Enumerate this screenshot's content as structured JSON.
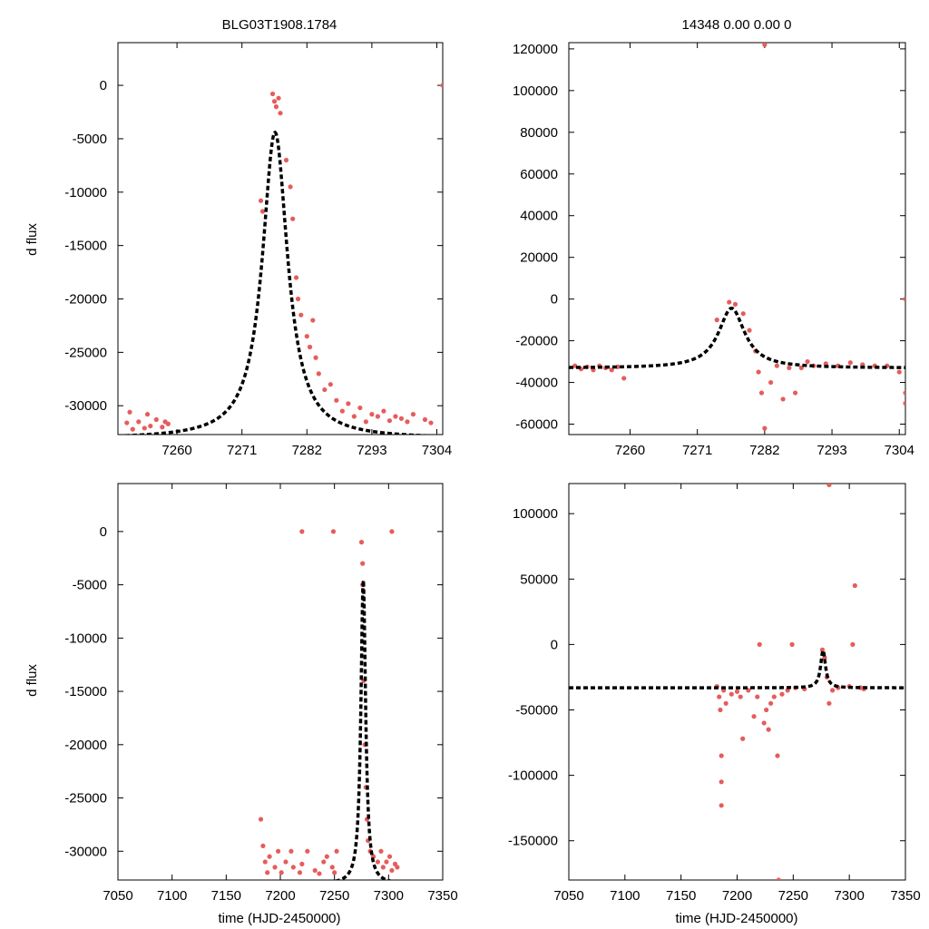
{
  "figure": {
    "title_left": "BLG03T1908.1784",
    "title_right": "14348  0.00  0.00  0",
    "ylabel": "d flux",
    "xlabel": "time (HJD-2450000)"
  },
  "colors": {
    "points": "#e65c5c",
    "model": "#000000",
    "axes": "#000000"
  },
  "chart_data": [
    {
      "type": "scatter",
      "panel": "top-left",
      "xlim": [
        7250,
        7305
      ],
      "ylim": [
        -32700,
        4000
      ],
      "xticks": [
        7260,
        7271,
        7282,
        7293,
        7304
      ],
      "yticks": [
        0,
        -5000,
        -10000,
        -15000,
        -20000,
        -25000,
        -30000
      ],
      "model": {
        "t0": 7276.6,
        "peak": -4400,
        "base": -33100,
        "width": 2.6
      },
      "series": [
        {
          "name": "data",
          "points": [
            [
              7251.5,
              -31600
            ],
            [
              7252.5,
              -32200
            ],
            [
              7253.5,
              -31500
            ],
            [
              7254.5,
              -32100
            ],
            [
              7255.5,
              -31900
            ],
            [
              7256.5,
              -31300
            ],
            [
              7257.5,
              -32000
            ],
            [
              7258.5,
              -31700
            ],
            [
              7252,
              -30600
            ],
            [
              7255,
              -30800
            ],
            [
              7258,
              -31500
            ],
            [
              7274.2,
              -10800
            ],
            [
              7274.5,
              -11800
            ],
            [
              7276.2,
              -800
            ],
            [
              7276.5,
              -1500
            ],
            [
              7276.8,
              -2000
            ],
            [
              7277.2,
              -1200
            ],
            [
              7277.5,
              -2600
            ],
            [
              7278.5,
              -7000
            ],
            [
              7279.2,
              -9500
            ],
            [
              7279.6,
              -12500
            ],
            [
              7280.2,
              -18000
            ],
            [
              7280.5,
              -20000
            ],
            [
              7281.0,
              -21500
            ],
            [
              7282.0,
              -23500
            ],
            [
              7282.5,
              -24500
            ],
            [
              7283.0,
              -22000
            ],
            [
              7283.5,
              -25500
            ],
            [
              7284.0,
              -27000
            ],
            [
              7285.0,
              -28500
            ],
            [
              7286.0,
              -28000
            ],
            [
              7287.0,
              -29500
            ],
            [
              7288.0,
              -30500
            ],
            [
              7289.0,
              -29800
            ],
            [
              7290.0,
              -31000
            ],
            [
              7291.0,
              -30200
            ],
            [
              7292.0,
              -31500
            ],
            [
              7293.0,
              -30800
            ],
            [
              7294.0,
              -31000
            ],
            [
              7295.0,
              -30500
            ],
            [
              7296.0,
              -31400
            ],
            [
              7297.0,
              -31000
            ],
            [
              7298.0,
              -31200
            ],
            [
              7299.0,
              -31500
            ],
            [
              7300.0,
              -30800
            ],
            [
              7302.0,
              -31300
            ],
            [
              7303.0,
              -31600
            ],
            [
              7305.0,
              0
            ]
          ]
        }
      ]
    },
    {
      "type": "scatter",
      "panel": "top-right",
      "xlim": [
        7250,
        7305
      ],
      "ylim": [
        -65000,
        123000
      ],
      "xticks": [
        7260,
        7271,
        7282,
        7293,
        7304
      ],
      "yticks": [
        120000,
        100000,
        80000,
        60000,
        40000,
        20000,
        0,
        -20000,
        -40000,
        -60000
      ],
      "model": {
        "t0": 7276.6,
        "peak": -4400,
        "base": -33100,
        "width": 2.6
      },
      "series": [
        {
          "name": "data",
          "points": [
            [
              7251,
              -32000
            ],
            [
              7252,
              -33500
            ],
            [
              7253,
              -32500
            ],
            [
              7254,
              -34000
            ],
            [
              7255,
              -32000
            ],
            [
              7256,
              -33000
            ],
            [
              7257,
              -34000
            ],
            [
              7258,
              -32500
            ],
            [
              7259,
              -38000
            ],
            [
              7274.2,
              -10000
            ],
            [
              7276.2,
              -1500
            ],
            [
              7277.2,
              -2500
            ],
            [
              7278.5,
              -7000
            ],
            [
              7279.5,
              -15000
            ],
            [
              7280.5,
              -25000
            ],
            [
              7281,
              -35000
            ],
            [
              7281.5,
              -45000
            ],
            [
              7282,
              -62000
            ],
            [
              7282,
              122000
            ],
            [
              7283,
              -40000
            ],
            [
              7284,
              -32000
            ],
            [
              7285,
              -48000
            ],
            [
              7286,
              -33000
            ],
            [
              7287,
              -45000
            ],
            [
              7288,
              -33000
            ],
            [
              7289,
              -30000
            ],
            [
              7290,
              -32000
            ],
            [
              7292,
              -31000
            ],
            [
              7294,
              -32000
            ],
            [
              7296,
              -30500
            ],
            [
              7298,
              -31500
            ],
            [
              7300,
              -32000
            ],
            [
              7302,
              -32000
            ],
            [
              7304,
              -35000
            ],
            [
              7305,
              -45000
            ],
            [
              7305,
              -50000
            ],
            [
              7305,
              0
            ]
          ]
        }
      ]
    },
    {
      "type": "scatter",
      "panel": "bottom-left",
      "xlim": [
        7050,
        7350
      ],
      "ylim": [
        -32700,
        4500
      ],
      "xticks": [
        7050,
        7100,
        7150,
        7200,
        7250,
        7300,
        7350
      ],
      "yticks": [
        0,
        -5000,
        -10000,
        -15000,
        -20000,
        -25000,
        -30000
      ],
      "model": {
        "t0": 7276.6,
        "peak": -4400,
        "base": -33100,
        "width": 2.6
      },
      "series": [
        {
          "name": "data",
          "points": [
            [
              7182,
              -27000
            ],
            [
              7184,
              -29500
            ],
            [
              7186,
              -31000
            ],
            [
              7188,
              -32000
            ],
            [
              7190,
              -30500
            ],
            [
              7195,
              -31500
            ],
            [
              7198,
              -30000
            ],
            [
              7201,
              -32000
            ],
            [
              7205,
              -31000
            ],
            [
              7210,
              -30000
            ],
            [
              7212,
              -31500
            ],
            [
              7218,
              -32000
            ],
            [
              7220,
              -31200
            ],
            [
              7225,
              -30000
            ],
            [
              7232,
              -31800
            ],
            [
              7236,
              -32100
            ],
            [
              7240,
              -31000
            ],
            [
              7243,
              -30500
            ],
            [
              7248,
              -31500
            ],
            [
              7250,
              -32000
            ],
            [
              7252,
              -30000
            ],
            [
              7220,
              0
            ],
            [
              7249,
              0
            ],
            [
              7275,
              -1000
            ],
            [
              7276,
              -3000
            ],
            [
              7276,
              -5000
            ],
            [
              7277,
              -9000
            ],
            [
              7277,
              -14000
            ],
            [
              7278,
              -20000
            ],
            [
              7279,
              -24000
            ],
            [
              7280,
              -27000
            ],
            [
              7281,
              -29000
            ],
            [
              7283,
              -30000
            ],
            [
              7286,
              -30500
            ],
            [
              7290,
              -31000
            ],
            [
              7293,
              -30000
            ],
            [
              7295,
              -31500
            ],
            [
              7298,
              -31000
            ],
            [
              7301,
              -30500
            ],
            [
              7303,
              -31800
            ],
            [
              7306,
              -31200
            ],
            [
              7308,
              -31500
            ],
            [
              7303,
              0
            ]
          ]
        }
      ]
    },
    {
      "type": "scatter",
      "panel": "bottom-right",
      "xlim": [
        7050,
        7350
      ],
      "ylim": [
        -180000,
        123000
      ],
      "xticks": [
        7050,
        7100,
        7150,
        7200,
        7250,
        7300,
        7350
      ],
      "yticks": [
        100000,
        50000,
        0,
        -50000,
        -100000,
        -150000
      ],
      "model": {
        "t0": 7276.6,
        "peak": -4400,
        "base": -33100,
        "width": 2.6
      },
      "series": [
        {
          "name": "data",
          "points": [
            [
              7182,
              -32000
            ],
            [
              7184,
              -40000
            ],
            [
              7185,
              -50000
            ],
            [
              7186,
              -85000
            ],
            [
              7186,
              -105000
            ],
            [
              7186,
              -123000
            ],
            [
              7188,
              -35000
            ],
            [
              7190,
              -45000
            ],
            [
              7195,
              -38000
            ],
            [
              7200,
              -36000
            ],
            [
              7203,
              -40000
            ],
            [
              7205,
              -72000
            ],
            [
              7210,
              -35000
            ],
            [
              7215,
              -55000
            ],
            [
              7218,
              -40000
            ],
            [
              7220,
              0
            ],
            [
              7224,
              -60000
            ],
            [
              7226,
              -50000
            ],
            [
              7228,
              -65000
            ],
            [
              7230,
              -45000
            ],
            [
              7233,
              -40000
            ],
            [
              7236,
              -85000
            ],
            [
              7237,
              -180000
            ],
            [
              7240,
              -38000
            ],
            [
              7245,
              -35000
            ],
            [
              7249,
              0
            ],
            [
              7252,
              -33000
            ],
            [
              7260,
              -34000
            ],
            [
              7276,
              -4000
            ],
            [
              7278,
              -10000
            ],
            [
              7280,
              -25000
            ],
            [
              7282,
              122000
            ],
            [
              7282,
              -45000
            ],
            [
              7285,
              -35000
            ],
            [
              7290,
              -33000
            ],
            [
              7300,
              -32000
            ],
            [
              7303,
              0
            ],
            [
              7305,
              45000
            ],
            [
              7310,
              -33000
            ],
            [
              7313,
              -34000
            ]
          ]
        }
      ]
    }
  ]
}
